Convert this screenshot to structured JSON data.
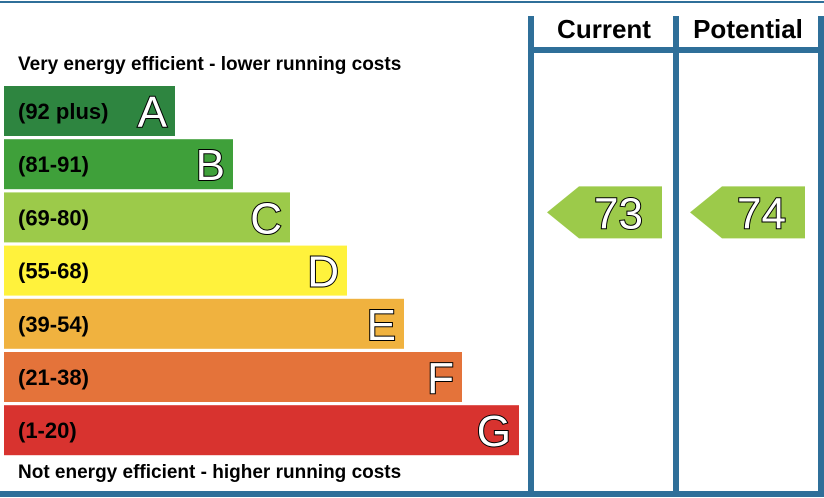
{
  "chart_data": {
    "type": "bar",
    "top_caption": "Very energy efficient - lower running costs",
    "bottom_caption": "Not energy efficient - higher running costs",
    "columns": [
      "Current",
      "Potential"
    ],
    "bands": [
      {
        "range": "(92 plus)",
        "letter": "A",
        "min": 92,
        "max": 100,
        "color": "#2e8540"
      },
      {
        "range": "(81-91)",
        "letter": "B",
        "min": 81,
        "max": 91,
        "color": "#3fa03a"
      },
      {
        "range": "(69-80)",
        "letter": "C",
        "min": 69,
        "max": 80,
        "color": "#9cca4a"
      },
      {
        "range": "(55-68)",
        "letter": "D",
        "min": 55,
        "max": 68,
        "color": "#fff23c"
      },
      {
        "range": "(39-54)",
        "letter": "E",
        "min": 39,
        "max": 54,
        "color": "#f0b23f"
      },
      {
        "range": "(21-38)",
        "letter": "F",
        "min": 21,
        "max": 38,
        "color": "#e4733a"
      },
      {
        "range": "(1-20)",
        "letter": "G",
        "min": 1,
        "max": 20,
        "color": "#d8332f"
      }
    ],
    "ratings": [
      {
        "column": "Current",
        "value": 73,
        "band": "C",
        "color": "#9cca4a"
      },
      {
        "column": "Potential",
        "value": 74,
        "band": "C",
        "color": "#9cca4a"
      }
    ],
    "frame_color": "#2f6f99"
  }
}
